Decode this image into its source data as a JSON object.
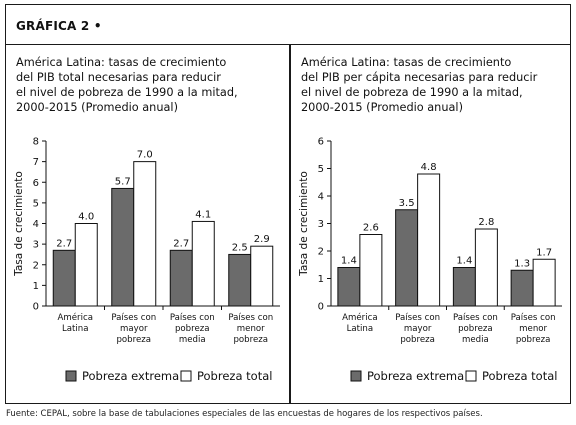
{
  "graph_label": "GRÁFICA 2 •",
  "footnote": "Fuente: CEPAL, sobre la base de tabulaciones especiales de las encuestas de hogares de los respectivos países.",
  "colors": {
    "extreme": "#6b6b6b",
    "total": "#ffffff",
    "stroke": "#111111"
  },
  "chart_data": [
    {
      "type": "bar",
      "title_lines": [
        "América Latina: tasas de crecimiento",
        "del PIB total necesarias para reducir",
        "el nivel de pobreza de 1990 a la mitad,",
        "2000-2015 (Promedio anual)"
      ],
      "ylabel": "Tasa de crecimiento",
      "ylim": [
        0,
        8
      ],
      "yticks": [
        0,
        1,
        2,
        3,
        4,
        5,
        6,
        7,
        8
      ],
      "categories": [
        [
          "América",
          "Latina"
        ],
        [
          "Países con",
          "mayor",
          "pobreza"
        ],
        [
          "Países con",
          "pobreza",
          "media"
        ],
        [
          "Países con",
          "menor",
          "pobreza"
        ]
      ],
      "series": [
        {
          "name": "Pobreza extrema",
          "values": [
            2.7,
            5.7,
            2.7,
            2.5
          ],
          "labels": [
            "2.7",
            "5.7",
            "2.7",
            "2.5"
          ]
        },
        {
          "name": "Pobreza total",
          "values": [
            4.0,
            7.0,
            4.1,
            2.9
          ],
          "labels": [
            "4.0",
            "7.0",
            "4.1",
            "2.9"
          ]
        }
      ],
      "legend": "bottom"
    },
    {
      "type": "bar",
      "title_lines": [
        "América Latina: tasas de crecimiento",
        "del PIB per cápita necesarias para reducir",
        "el nivel de pobreza de 1990 a la mitad,",
        "2000-2015 (Promedio anual)"
      ],
      "ylabel": "Tasa de crecimiento",
      "ylim": [
        0,
        6
      ],
      "yticks": [
        0,
        1,
        2,
        3,
        4,
        5,
        6
      ],
      "categories": [
        [
          "América",
          "Latina"
        ],
        [
          "Países con",
          "mayor",
          "pobreza"
        ],
        [
          "Países con",
          "pobreza",
          "media"
        ],
        [
          "Países con",
          "menor",
          "pobreza"
        ]
      ],
      "series": [
        {
          "name": "Pobreza extrema",
          "values": [
            1.4,
            3.5,
            1.4,
            1.3
          ],
          "labels": [
            "1.4",
            "3.5",
            "1.4",
            "1.3"
          ]
        },
        {
          "name": "Pobreza total",
          "values": [
            2.6,
            4.8,
            2.8,
            1.7
          ],
          "labels": [
            "2.6",
            "4.8",
            "2.8",
            "1.7"
          ]
        }
      ],
      "legend": "bottom"
    }
  ]
}
